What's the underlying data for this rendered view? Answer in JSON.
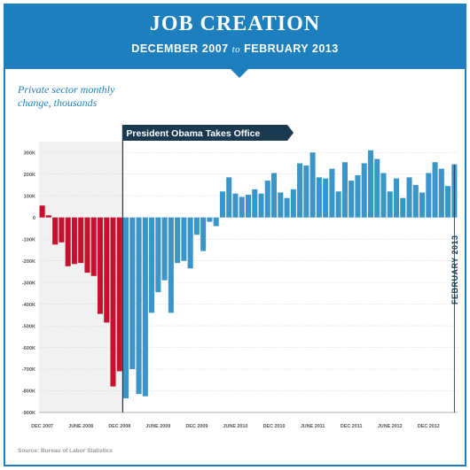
{
  "header": {
    "title": "JOB CREATION",
    "subtitle_start": "DECEMBER 2007",
    "subtitle_to": "to",
    "subtitle_end": "FEBRUARY 2013"
  },
  "source": "Source: Bureau of Labor Statistics",
  "colors": {
    "brand": "#1d7fbd",
    "before": "#c8102e",
    "after": "#3a95c9"
  },
  "chart_data": {
    "type": "bar",
    "title": "JOB CREATION",
    "subtitle": "DECEMBER 2007 to FEBRUARY 2013",
    "ylabel_lines": [
      "Private sector monthly",
      "change, thousands"
    ],
    "xlabel": "",
    "ylim": [
      -900,
      350
    ],
    "yticks": [
      {
        "value": 300,
        "label": "300K"
      },
      {
        "value": 200,
        "label": "200K"
      },
      {
        "value": 100,
        "label": "100K"
      },
      {
        "value": 0,
        "label": "0"
      },
      {
        "value": -100,
        "label": "-100K"
      },
      {
        "value": -200,
        "label": "-200K"
      },
      {
        "value": -300,
        "label": "-300K"
      },
      {
        "value": -400,
        "label": "-400K"
      },
      {
        "value": -500,
        "label": "-500K"
      },
      {
        "value": -600,
        "label": "-600K"
      },
      {
        "value": -700,
        "label": "-700K"
      },
      {
        "value": -800,
        "label": "-800K"
      },
      {
        "value": -900,
        "label": "-900K"
      }
    ],
    "xticks": [
      {
        "index": 0,
        "label": "DEC 2007"
      },
      {
        "index": 6,
        "label": "JUNE 2008"
      },
      {
        "index": 12,
        "label": "DEC 2008"
      },
      {
        "index": 18,
        "label": "JUNE 2009"
      },
      {
        "index": 24,
        "label": "DEC 2009"
      },
      {
        "index": 30,
        "label": "JUNE 2010"
      },
      {
        "index": 36,
        "label": "DEC 2010"
      },
      {
        "index": 42,
        "label": "JUNE 2011"
      },
      {
        "index": 48,
        "label": "DEC 2011"
      },
      {
        "index": 54,
        "label": "JUNE 2012"
      },
      {
        "index": 60,
        "label": "DEC 2012"
      }
    ],
    "grid": true,
    "series": [
      {
        "name": "Before",
        "color": "#c8102e",
        "start_index": 0,
        "values": [
          55,
          10,
          -125,
          -115,
          -225,
          -215,
          -210,
          -255,
          -270,
          -445,
          -485,
          -780,
          -710
        ]
      },
      {
        "name": "After",
        "color": "#3a95c9",
        "start_index": 13,
        "values": [
          -835,
          -700,
          -815,
          -825,
          -440,
          -345,
          -290,
          -440,
          -210,
          -200,
          -235,
          -80,
          -155,
          -20,
          -40,
          120,
          185,
          110,
          95,
          105,
          130,
          110,
          170,
          205,
          115,
          90,
          130,
          250,
          240,
          300,
          185,
          180,
          225,
          120,
          255,
          170,
          195,
          250,
          310,
          270,
          205,
          120,
          180,
          90,
          185,
          150,
          115,
          205,
          255,
          225,
          145,
          245
        ]
      }
    ],
    "annotations": [
      {
        "text": "President Obama Takes Office",
        "index": 13
      },
      {
        "text": "FEBRUARY 2013",
        "index": 64
      }
    ]
  }
}
